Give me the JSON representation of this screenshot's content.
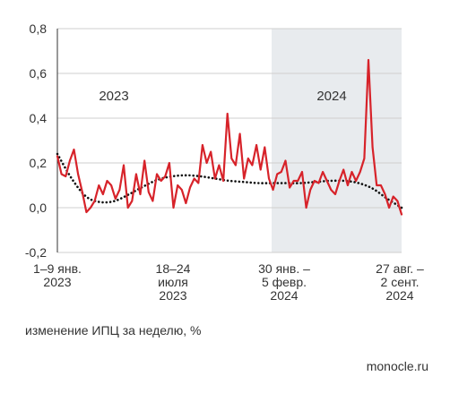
{
  "chart_data": {
    "type": "line",
    "ylim": [
      -0.2,
      0.8
    ],
    "yticks": [
      "-0,2",
      "0,0",
      "0,2",
      "0,4",
      "0,6",
      "0,8"
    ],
    "xticks": [
      {
        "lines": [
          "1–9 янв.",
          "2023"
        ]
      },
      {
        "lines": [
          "18–24",
          "июля",
          "2023"
        ]
      },
      {
        "lines": [
          "30 янв. –",
          "5 февр.",
          "2024"
        ]
      },
      {
        "lines": [
          "27 авг. –",
          "2 сент.",
          "2024"
        ]
      }
    ],
    "year_labels": [
      "2023",
      "2024"
    ],
    "shaded_period": "2024",
    "series": [
      {
        "style": "solid",
        "color": "#d7232a",
        "values": [
          0.23,
          0.15,
          0.14,
          0.21,
          0.26,
          0.15,
          0.07,
          -0.02,
          0.0,
          0.03,
          0.1,
          0.06,
          0.12,
          0.1,
          0.04,
          0.08,
          0.19,
          0.0,
          0.03,
          0.15,
          0.06,
          0.21,
          0.07,
          0.03,
          0.15,
          0.12,
          0.14,
          0.2,
          0.0,
          0.1,
          0.08,
          0.02,
          0.09,
          0.13,
          0.11,
          0.28,
          0.2,
          0.25,
          0.13,
          0.19,
          0.12,
          0.42,
          0.22,
          0.19,
          0.33,
          0.13,
          0.22,
          0.19,
          0.28,
          0.17,
          0.27,
          0.13,
          0.08,
          0.15,
          0.16,
          0.21,
          0.09,
          0.12,
          0.12,
          0.16,
          0.0,
          0.08,
          0.12,
          0.11,
          0.16,
          0.12,
          0.08,
          0.06,
          0.12,
          0.17,
          0.1,
          0.16,
          0.12,
          0.16,
          0.22,
          0.66,
          0.27,
          0.1,
          0.1,
          0.06,
          0.0,
          0.05,
          0.03,
          -0.03
        ]
      },
      {
        "style": "dotted",
        "color": "#111111",
        "values": [
          0.24,
          0.13,
          0.05,
          0.025,
          0.03,
          0.06,
          0.095,
          0.125,
          0.14,
          0.145,
          0.14,
          0.13,
          0.12,
          0.115,
          0.11,
          0.11,
          0.11,
          0.11,
          0.115,
          0.12,
          0.12,
          0.11,
          0.085,
          0.04,
          0.0
        ]
      }
    ]
  },
  "caption": "изменение ИПЦ за неделю, %",
  "source": "monocle.ru"
}
